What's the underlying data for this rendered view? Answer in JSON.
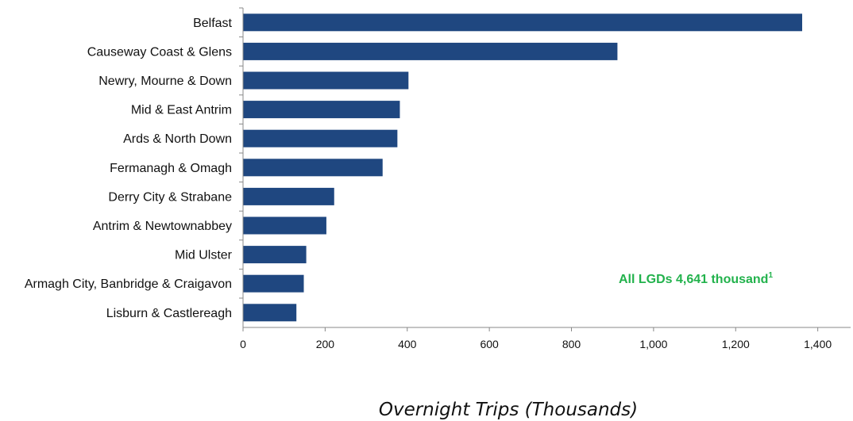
{
  "chart_data": {
    "type": "bar",
    "orientation": "horizontal",
    "categories": [
      "Belfast",
      "Causeway Coast & Glens",
      "Newry, Mourne & Down",
      "Mid & East Antrim",
      "Ards & North Down",
      "Fermanagh & Omagh",
      "Derry City & Strabane",
      "Antrim & Newtownabbey",
      "Mid Ulster",
      "Armagh City, Banbridge & Craigavon",
      "Lisburn & Castlereagh"
    ],
    "values": [
      1362,
      912,
      403,
      382,
      376,
      340,
      222,
      203,
      154,
      148,
      130
    ],
    "xlabel": "Overnight Trips (Thousands)",
    "ylabel": "",
    "xlim": [
      0,
      1480
    ],
    "ticks": [
      0,
      200,
      400,
      600,
      800,
      1000,
      1200,
      1400
    ],
    "tick_labels": [
      "0",
      "200",
      "400",
      "600",
      "800",
      "1,000",
      "1,200",
      "1,400"
    ],
    "grid": false,
    "bar_color": "#1f4780",
    "annotation": {
      "text": "All LGDs 4,641 thousand",
      "superscript": "1",
      "color": "#22b24c"
    }
  }
}
